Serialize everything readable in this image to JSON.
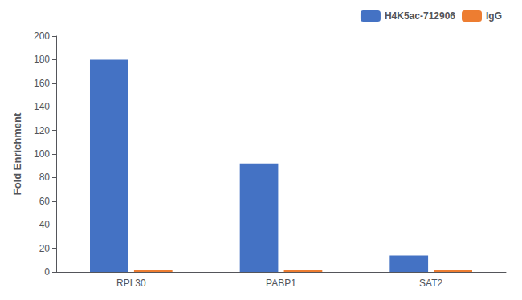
{
  "chart_data": {
    "type": "bar",
    "categories": [
      "RPL30",
      "PABP1",
      "SAT2"
    ],
    "series": [
      {
        "name": "H4K5ac-712906",
        "color": "#4472c4",
        "values": [
          180,
          92,
          14
        ]
      },
      {
        "name": "IgG",
        "color": "#ed7d31",
        "values": [
          1.5,
          1.5,
          1.5
        ]
      }
    ],
    "ylabel": "Fold Enrichment",
    "ylim": [
      0,
      200
    ],
    "yticks": [
      0,
      20,
      40,
      60,
      80,
      100,
      120,
      140,
      160,
      180,
      200
    ],
    "grid": false,
    "legend": "upper right"
  }
}
